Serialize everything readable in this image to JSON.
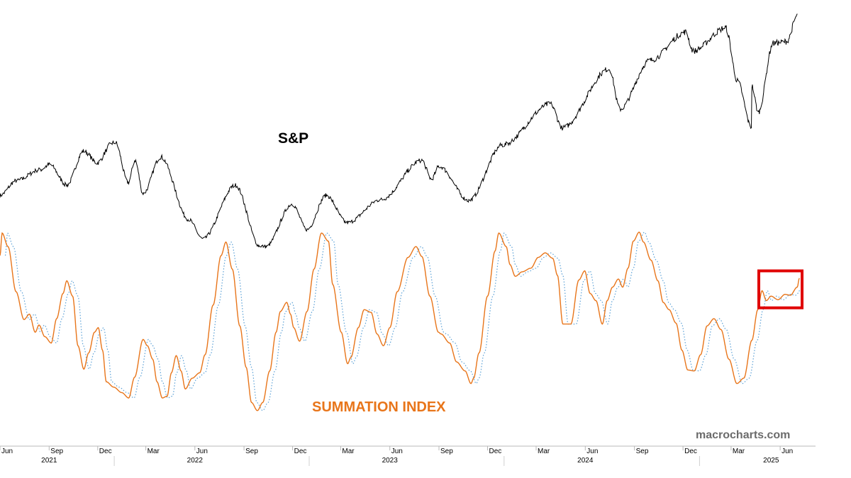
{
  "chart_data": {
    "type": "line",
    "title": "",
    "xlabel": "",
    "ylabel": "",
    "grid": false,
    "legend": "none",
    "x_range": [
      "2021-06-01",
      "2025-07-08"
    ],
    "labels": {
      "sp": "S&P",
      "summation": "SUMMATION INDEX",
      "watermark": "macrocharts.com"
    },
    "x_ticks": [
      {
        "date": "2021-06-01",
        "label": "Jun"
      },
      {
        "date": "2021-09-01",
        "label": "Sep"
      },
      {
        "date": "2021-12-01",
        "label": "Dec"
      },
      {
        "date": "2022-03-01",
        "label": "Mar"
      },
      {
        "date": "2022-06-01",
        "label": "Jun"
      },
      {
        "date": "2022-09-01",
        "label": "Sep"
      },
      {
        "date": "2022-12-01",
        "label": "Dec"
      },
      {
        "date": "2023-03-01",
        "label": "Mar"
      },
      {
        "date": "2023-06-01",
        "label": "Jun"
      },
      {
        "date": "2023-09-01",
        "label": "Sep"
      },
      {
        "date": "2023-12-01",
        "label": "Dec"
      },
      {
        "date": "2024-03-01",
        "label": "Mar"
      },
      {
        "date": "2024-06-01",
        "label": "Jun"
      },
      {
        "date": "2024-09-01",
        "label": "Sep"
      },
      {
        "date": "2024-12-01",
        "label": "Dec"
      },
      {
        "date": "2025-03-01",
        "label": "Mar"
      },
      {
        "date": "2025-06-01",
        "label": "Jun"
      }
    ],
    "year_labels": [
      {
        "date": "2021-09-01",
        "label": "2021"
      },
      {
        "date": "2022-06-01",
        "label": "2022"
      },
      {
        "date": "2023-06-01",
        "label": "2023"
      },
      {
        "date": "2024-06-01",
        "label": "2024"
      },
      {
        "date": "2025-05-15",
        "label": "2025"
      }
    ],
    "year_boundaries": [
      "2022-01-01",
      "2023-01-01",
      "2024-01-01",
      "2025-01-01"
    ],
    "series": [
      {
        "color": "#000000",
        "style": "solid-daily",
        "y_range": [
          3500,
          6300
        ],
        "points": [
          [
            "2021-06-01",
            4180
          ],
          [
            "2021-07-01",
            4350
          ],
          [
            "2021-08-15",
            4480
          ],
          [
            "2021-09-02",
            4540
          ],
          [
            "2021-10-04",
            4300
          ],
          [
            "2021-11-05",
            4700
          ],
          [
            "2021-11-30",
            4560
          ],
          [
            "2021-12-28",
            4790
          ],
          [
            "2022-01-03",
            4800
          ],
          [
            "2022-01-27",
            4330
          ],
          [
            "2022-02-09",
            4590
          ],
          [
            "2022-02-24",
            4200
          ],
          [
            "2022-03-29",
            4630
          ],
          [
            "2022-05-20",
            3900
          ],
          [
            "2022-06-16",
            3670
          ],
          [
            "2022-08-16",
            4300
          ],
          [
            "2022-09-30",
            3590
          ],
          [
            "2022-10-12",
            3580
          ],
          [
            "2022-11-30",
            4080
          ],
          [
            "2022-12-28",
            3780
          ],
          [
            "2023-02-02",
            4180
          ],
          [
            "2023-03-13",
            3860
          ],
          [
            "2023-05-15",
            4130
          ],
          [
            "2023-07-31",
            4590
          ],
          [
            "2023-08-18",
            4370
          ],
          [
            "2023-09-01",
            4520
          ],
          [
            "2023-10-27",
            4120
          ],
          [
            "2023-12-29",
            4770
          ],
          [
            "2024-03-28",
            5250
          ],
          [
            "2024-04-19",
            4970
          ],
          [
            "2024-07-16",
            5660
          ],
          [
            "2024-08-05",
            5190
          ],
          [
            "2024-09-30",
            5760
          ],
          [
            "2024-12-06",
            6090
          ],
          [
            "2024-12-20",
            5870
          ],
          [
            "2025-02-19",
            6140
          ],
          [
            "2025-03-13",
            5520
          ],
          [
            "2025-04-08",
            4980
          ],
          [
            "2025-04-09",
            5460
          ],
          [
            "2025-04-21",
            5150
          ],
          [
            "2025-05-19",
            5960
          ],
          [
            "2025-06-13",
            5980
          ],
          [
            "2025-07-03",
            6280
          ]
        ]
      },
      {
        "color": "#e8751a",
        "style": "solid",
        "y_range": [
          -1100,
          1100
        ],
        "points": [
          [
            "2021-06-01",
            700
          ],
          [
            "2021-06-05",
            950
          ],
          [
            "2021-06-16",
            800
          ],
          [
            "2021-07-01",
            300
          ],
          [
            "2021-07-16",
            -10
          ],
          [
            "2021-07-26",
            50
          ],
          [
            "2021-08-06",
            -150
          ],
          [
            "2021-08-13",
            -70
          ],
          [
            "2021-08-24",
            -200
          ],
          [
            "2021-09-05",
            -270
          ],
          [
            "2021-09-15",
            0
          ],
          [
            "2021-09-27",
            280
          ],
          [
            "2021-10-04",
            420
          ],
          [
            "2021-10-15",
            250
          ],
          [
            "2021-10-25",
            -300
          ],
          [
            "2021-11-05",
            -560
          ],
          [
            "2021-11-14",
            -380
          ],
          [
            "2021-11-25",
            -150
          ],
          [
            "2021-12-02",
            -100
          ],
          [
            "2021-12-10",
            -350
          ],
          [
            "2021-12-17",
            -700
          ],
          [
            "2021-12-31",
            -760
          ],
          [
            "2022-01-15",
            -820
          ],
          [
            "2022-01-28",
            -880
          ],
          [
            "2022-02-08",
            -650
          ],
          [
            "2022-02-24",
            -230
          ],
          [
            "2022-03-04",
            -300
          ],
          [
            "2022-03-14",
            -450
          ],
          [
            "2022-03-22",
            -700
          ],
          [
            "2022-04-01",
            -880
          ],
          [
            "2022-04-10",
            -860
          ],
          [
            "2022-04-18",
            -600
          ],
          [
            "2022-04-27",
            -410
          ],
          [
            "2022-05-06",
            -580
          ],
          [
            "2022-05-14",
            -780
          ],
          [
            "2022-05-27",
            -660
          ],
          [
            "2022-06-10",
            -600
          ],
          [
            "2022-06-20",
            -400
          ],
          [
            "2022-07-05",
            150
          ],
          [
            "2022-07-20",
            700
          ],
          [
            "2022-07-29",
            850
          ],
          [
            "2022-08-10",
            550
          ],
          [
            "2022-08-24",
            -80
          ],
          [
            "2022-09-05",
            -540
          ],
          [
            "2022-09-15",
            -930
          ],
          [
            "2022-09-26",
            -1020
          ],
          [
            "2022-10-06",
            -930
          ],
          [
            "2022-10-19",
            -580
          ],
          [
            "2022-10-31",
            -150
          ],
          [
            "2022-11-08",
            80
          ],
          [
            "2022-11-20",
            180
          ],
          [
            "2022-11-27",
            50
          ],
          [
            "2022-12-03",
            -100
          ],
          [
            "2022-12-14",
            -250
          ],
          [
            "2022-12-28",
            80
          ],
          [
            "2023-01-10",
            550
          ],
          [
            "2023-01-24",
            950
          ],
          [
            "2023-02-06",
            860
          ],
          [
            "2023-02-14",
            380
          ],
          [
            "2023-03-02",
            -150
          ],
          [
            "2023-03-14",
            -500
          ],
          [
            "2023-03-20",
            -430
          ],
          [
            "2023-04-03",
            -100
          ],
          [
            "2023-04-14",
            100
          ],
          [
            "2023-04-27",
            70
          ],
          [
            "2023-05-08",
            -170
          ],
          [
            "2023-05-20",
            -300
          ],
          [
            "2023-06-01",
            -100
          ],
          [
            "2023-06-15",
            300
          ],
          [
            "2023-07-05",
            680
          ],
          [
            "2023-07-20",
            800
          ],
          [
            "2023-07-31",
            690
          ],
          [
            "2023-08-15",
            250
          ],
          [
            "2023-08-31",
            -150
          ],
          [
            "2023-09-05",
            -170
          ],
          [
            "2023-09-21",
            -270
          ],
          [
            "2023-10-04",
            -480
          ],
          [
            "2023-10-20",
            -580
          ],
          [
            "2023-10-31",
            -720
          ],
          [
            "2023-11-05",
            -660
          ],
          [
            "2023-11-15",
            -380
          ],
          [
            "2023-12-01",
            250
          ],
          [
            "2023-12-15",
            750
          ],
          [
            "2023-12-22",
            950
          ],
          [
            "2024-01-05",
            800
          ],
          [
            "2024-01-12",
            600
          ],
          [
            "2024-01-22",
            470
          ],
          [
            "2024-02-04",
            520
          ],
          [
            "2024-02-20",
            560
          ],
          [
            "2024-03-05",
            680
          ],
          [
            "2024-03-18",
            730
          ],
          [
            "2024-04-01",
            670
          ],
          [
            "2024-04-10",
            480
          ],
          [
            "2024-04-20",
            -60
          ],
          [
            "2024-05-05",
            -60
          ],
          [
            "2024-05-20",
            430
          ],
          [
            "2024-05-31",
            530
          ],
          [
            "2024-06-10",
            280
          ],
          [
            "2024-06-21",
            200
          ],
          [
            "2024-07-03",
            -60
          ],
          [
            "2024-07-12",
            200
          ],
          [
            "2024-07-22",
            350
          ],
          [
            "2024-08-02",
            440
          ],
          [
            "2024-08-10",
            350
          ],
          [
            "2024-08-20",
            560
          ],
          [
            "2024-08-30",
            860
          ],
          [
            "2024-09-10",
            960
          ],
          [
            "2024-09-18",
            850
          ],
          [
            "2024-10-02",
            650
          ],
          [
            "2024-10-15",
            420
          ],
          [
            "2024-10-25",
            180
          ],
          [
            "2024-11-05",
            100
          ],
          [
            "2024-11-18",
            -50
          ],
          [
            "2024-11-29",
            -350
          ],
          [
            "2024-12-10",
            -570
          ],
          [
            "2024-12-22",
            -580
          ],
          [
            "2025-01-03",
            -400
          ],
          [
            "2025-01-15",
            -80
          ],
          [
            "2025-01-28",
            0
          ],
          [
            "2025-02-10",
            -120
          ],
          [
            "2025-02-25",
            -450
          ],
          [
            "2025-03-12",
            -720
          ],
          [
            "2025-03-25",
            -660
          ],
          [
            "2025-04-09",
            -240
          ],
          [
            "2025-04-20",
            100
          ],
          [
            "2025-04-28",
            310
          ],
          [
            "2025-05-06",
            200
          ],
          [
            "2025-05-15",
            250
          ],
          [
            "2025-05-28",
            210
          ],
          [
            "2025-06-10",
            270
          ],
          [
            "2025-06-20",
            260
          ],
          [
            "2025-07-03",
            350
          ],
          [
            "2025-07-07",
            450
          ]
        ]
      },
      {
        "color": "#5aa0d6",
        "style": "dotted",
        "y_range": [
          -1100,
          1100
        ],
        "lag_days": 10
      }
    ],
    "highlight_box": {
      "color": "#e00000",
      "x_from": "2025-04-22",
      "x_to": "2025-07-12",
      "y_from": 120,
      "y_to": 530
    }
  }
}
